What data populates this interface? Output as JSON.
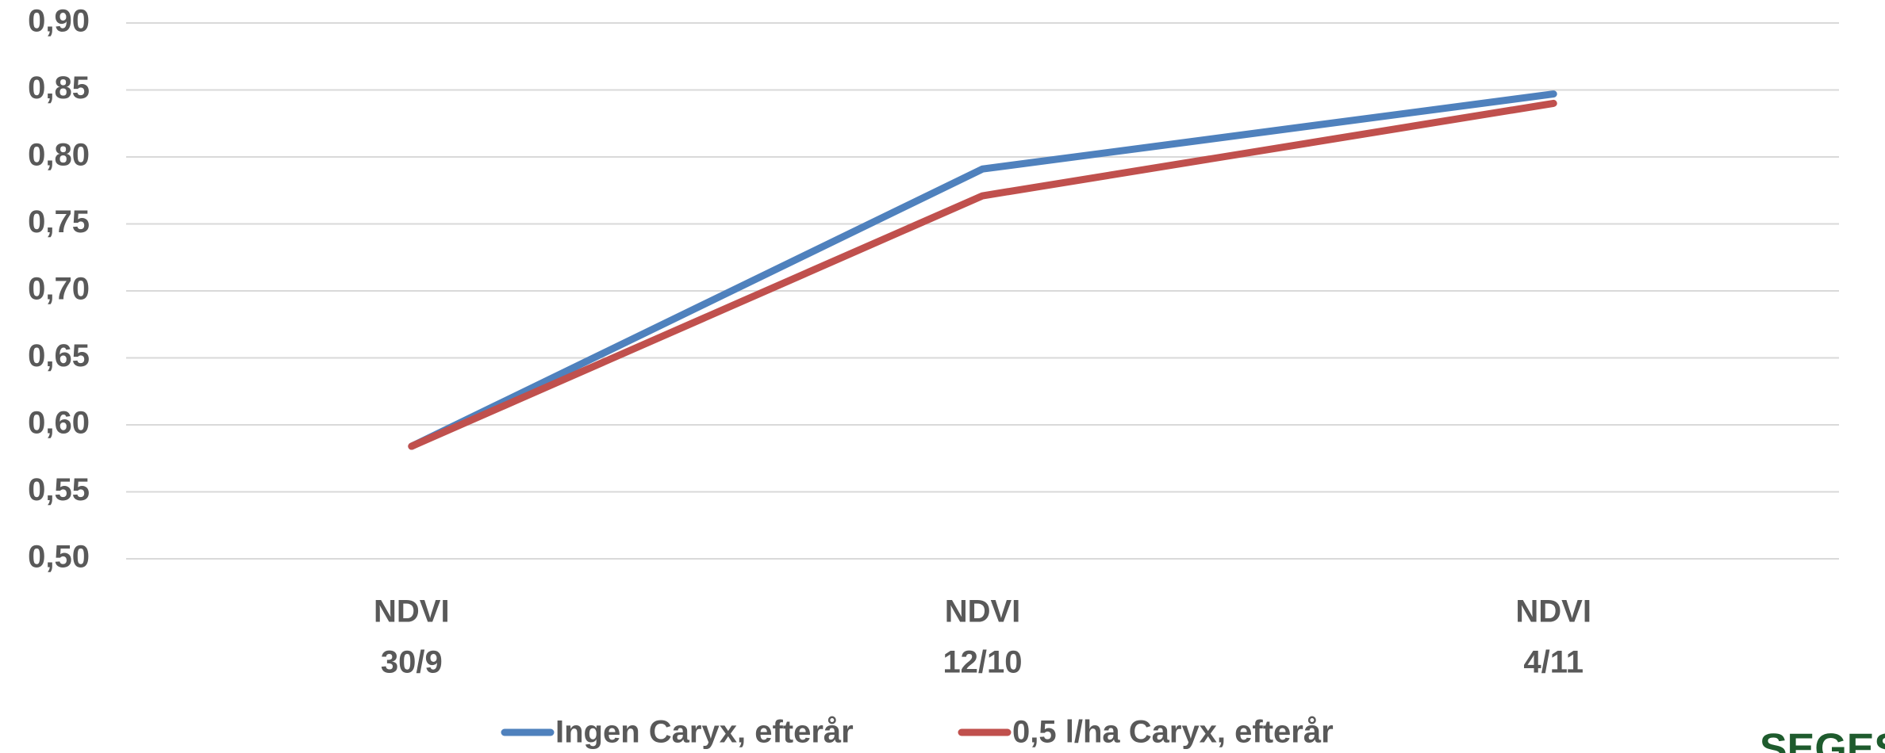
{
  "chart_data": {
    "type": "line",
    "categories": [
      [
        "NDVI",
        "30/9"
      ],
      [
        "NDVI",
        "12/10"
      ],
      [
        "NDVI",
        "4/11"
      ]
    ],
    "series": [
      {
        "name": "Ingen Caryx, efterår",
        "color": "#4f81bd",
        "values": [
          0.584,
          0.791,
          0.847
        ]
      },
      {
        "name": "0,5 l/ha Caryx, efterår",
        "color": "#c0504d",
        "values": [
          0.584,
          0.771,
          0.84
        ]
      }
    ],
    "ylim": [
      0.5,
      0.9
    ],
    "yticks": [
      {
        "value": 0.5,
        "label": "0,50"
      },
      {
        "value": 0.55,
        "label": "0,55"
      },
      {
        "value": 0.6,
        "label": "0,60"
      },
      {
        "value": 0.65,
        "label": "0,65"
      },
      {
        "value": 0.7,
        "label": "0,70"
      },
      {
        "value": 0.75,
        "label": "0,75"
      },
      {
        "value": 0.8,
        "label": "0,80"
      },
      {
        "value": 0.85,
        "label": "0,85"
      },
      {
        "value": 0.9,
        "label": "0,90"
      }
    ],
    "grid": true,
    "legend": "bottom"
  },
  "logo": "SEGES"
}
